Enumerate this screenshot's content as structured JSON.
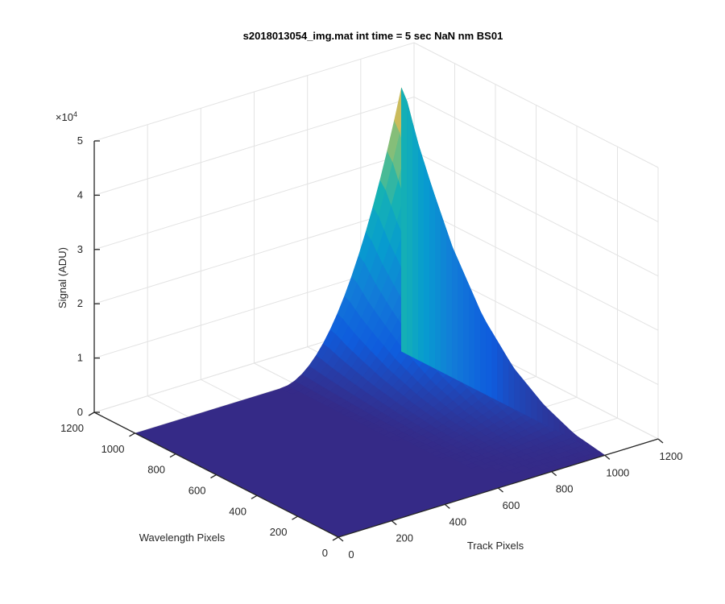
{
  "chart_data": {
    "type": "surface",
    "title": "s2018013054_img.mat int time = 5 sec  NaN nm BS01",
    "xlabel": "Track Pixels",
    "ylabel": "Wavelength Pixels",
    "zlabel": "Signal (ADU)",
    "z_exponent_label": "×10",
    "z_exponent_power": "4",
    "xlim": [
      0,
      1200
    ],
    "ylim": [
      0,
      1200
    ],
    "zlim": [
      0,
      50000
    ],
    "x_ticks": [
      0,
      200,
      400,
      600,
      800,
      1000,
      1200
    ],
    "x_tick_labels": [
      "0",
      "200",
      "400",
      "600",
      "800",
      "1000",
      "1200"
    ],
    "y_ticks": [
      0,
      200,
      400,
      600,
      800,
      1000,
      1200
    ],
    "y_tick_labels": [
      "0",
      "200",
      "400",
      "600",
      "800",
      "1000",
      "1200"
    ],
    "z_ticks": [
      0,
      10000,
      20000,
      30000,
      40000,
      50000
    ],
    "z_tick_labels": [
      "0",
      "1",
      "2",
      "3",
      "4",
      "5"
    ],
    "grid": true,
    "colormap": "parula",
    "data_extent": {
      "x": [
        0,
        1000
      ],
      "y": [
        0,
        1000
      ]
    },
    "peak_track_pixel": 1000,
    "profile": {
      "wavelength_pixels": [
        0,
        150,
        300,
        450,
        600,
        750,
        850,
        920,
        960,
        980,
        1000
      ],
      "signal_at_peak_track": [
        0,
        1000,
        3500,
        7500,
        14000,
        24000,
        33000,
        40000,
        45000,
        47500,
        48500
      ]
    }
  }
}
